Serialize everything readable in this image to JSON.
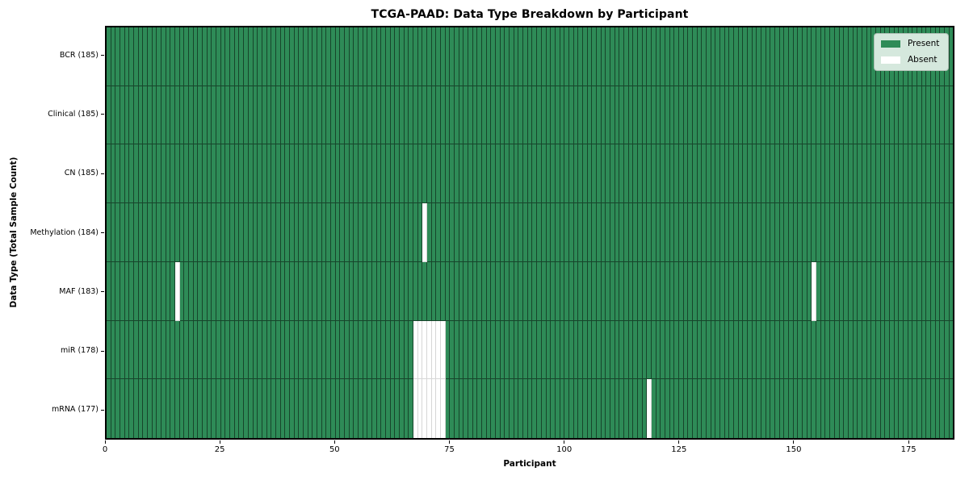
{
  "figure_title": "TCGA-PAAD: Data Type Breakdown by Participant",
  "axes": {
    "xlabel": "Participant",
    "ylabel": "Data Type (Total Sample Count)"
  },
  "legend": {
    "items": [
      {
        "label": "Present",
        "color": "#2e8b57"
      },
      {
        "label": "Absent",
        "color": "#ffffff"
      }
    ]
  },
  "colors": {
    "present": "#2e8b57",
    "absent": "#ffffff",
    "cell_edge_on_present": "rgba(0,0,0,0.5)",
    "cell_edge_on_absent": "rgba(0,0,0,0.16)",
    "spine": "#000000",
    "legend_bg": "#d5e8dd",
    "legend_border": "#aebfb4"
  },
  "chart_data": {
    "type": "heatmap",
    "title": "TCGA-PAAD: Data Type Breakdown by Participant",
    "xlabel": "Participant",
    "ylabel": "Data Type (Total Sample Count)",
    "n_participants": 185,
    "x_range": [
      0,
      185
    ],
    "x_ticks": [
      0,
      25,
      50,
      75,
      100,
      125,
      150,
      175
    ],
    "legend_entries": [
      "Present",
      "Absent"
    ],
    "legend_position": "upper right",
    "grid": "per-cell edges",
    "rows": [
      {
        "label": "BCR (185)",
        "total": 185,
        "absent_participants": []
      },
      {
        "label": "Clinical (185)",
        "total": 185,
        "absent_participants": []
      },
      {
        "label": "CN (185)",
        "total": 185,
        "absent_participants": []
      },
      {
        "label": "Methylation (184)",
        "total": 184,
        "absent_participants": [
          69
        ]
      },
      {
        "label": "MAF (183)",
        "total": 183,
        "absent_participants": [
          15,
          154
        ]
      },
      {
        "label": "miR (178)",
        "total": 178,
        "absent_participants": [
          67,
          68,
          69,
          70,
          71,
          72,
          73
        ]
      },
      {
        "label": "mRNA (177)",
        "total": 177,
        "absent_participants": [
          67,
          68,
          69,
          70,
          71,
          72,
          73,
          118
        ]
      }
    ]
  }
}
